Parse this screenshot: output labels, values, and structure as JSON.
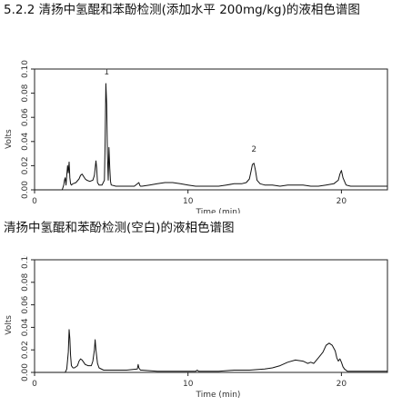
{
  "section_heading": "5.2.2 清扬中氢醌和苯酚检测(添加水平 200mg/kg)的液相色谱图",
  "blank_heading": "清扬中氢醌和苯酚检测(空白)的液相色谱图",
  "chart_data": [
    {
      "type": "line",
      "xlabel": "Time (min)",
      "ylabel": "Volts",
      "xlim": [
        0,
        23
      ],
      "ylim": [
        0,
        0.1
      ],
      "x_ticks": [
        0,
        10,
        20
      ],
      "y_ticks": [
        0.0,
        0.02,
        0.04,
        0.06,
        0.08,
        0.1
      ],
      "y_tick_labels": [
        "0.00",
        "0.02",
        "0.04",
        "0.06",
        "0.08",
        "0.10"
      ],
      "x_tick_labels": [
        "0",
        "10",
        "20"
      ],
      "annotations": [
        {
          "text": "1",
          "x": 4.7,
          "y": 0.094
        },
        {
          "text": "2",
          "x": 14.3,
          "y": 0.03
        }
      ],
      "series": [
        {
          "x": [
            0,
            1.8,
            1.9,
            1.95,
            2.0,
            2.05,
            2.1,
            2.15,
            2.2,
            2.25,
            2.3,
            2.35,
            2.4,
            2.5,
            2.7,
            2.9,
            3.0,
            3.1,
            3.2,
            3.3,
            3.4,
            3.6,
            3.8,
            3.9,
            4.0,
            4.05,
            4.1,
            4.2,
            4.4,
            4.55,
            4.6,
            4.65,
            4.7,
            4.75,
            4.8,
            4.85,
            4.9,
            4.95,
            5.0,
            5.3,
            5.8,
            6.5,
            6.8,
            6.85,
            6.9,
            7.0,
            7.5,
            8.0,
            8.5,
            9.0,
            9.5,
            10.0,
            10.5,
            11.0,
            11.5,
            12.0,
            12.5,
            13.0,
            13.5,
            13.8,
            14.0,
            14.1,
            14.2,
            14.3,
            14.4,
            14.5,
            14.7,
            15.0,
            15.5,
            16.0,
            16.5,
            17.0,
            17.5,
            18.0,
            18.5,
            19.0,
            19.5,
            19.8,
            19.9,
            20.0,
            20.1,
            20.3,
            20.6,
            21.0,
            22.0,
            23.0
          ],
          "y": [
            0.0,
            0.0,
            0.004,
            0.008,
            0.01,
            0.004,
            0.012,
            0.02,
            0.014,
            0.023,
            0.01,
            0.005,
            0.004,
            0.005,
            0.006,
            0.009,
            0.012,
            0.013,
            0.011,
            0.009,
            0.008,
            0.007,
            0.008,
            0.012,
            0.024,
            0.018,
            0.006,
            0.004,
            0.004,
            0.008,
            0.04,
            0.088,
            0.071,
            0.03,
            0.008,
            0.035,
            0.018,
            0.007,
            0.004,
            0.003,
            0.003,
            0.003,
            0.006,
            0.004,
            0.003,
            0.003,
            0.004,
            0.005,
            0.006,
            0.006,
            0.005,
            0.004,
            0.003,
            0.003,
            0.003,
            0.003,
            0.004,
            0.005,
            0.005,
            0.006,
            0.009,
            0.015,
            0.021,
            0.022,
            0.016,
            0.008,
            0.005,
            0.004,
            0.004,
            0.003,
            0.004,
            0.004,
            0.004,
            0.003,
            0.003,
            0.004,
            0.005,
            0.008,
            0.013,
            0.016,
            0.01,
            0.004,
            0.003,
            0.003,
            0.003,
            0.003
          ]
        }
      ]
    },
    {
      "type": "line",
      "xlabel": "Time (min)",
      "ylabel": "Volts",
      "xlim": [
        0,
        23
      ],
      "ylim": [
        0,
        0.1
      ],
      "x_ticks": [
        0,
        10,
        20
      ],
      "y_ticks": [
        0.0,
        0.02,
        0.04,
        0.06,
        0.08,
        0.1
      ],
      "y_tick_labels": [
        "0.00",
        "0.02",
        "0.04",
        "0.06",
        "0.08",
        "0.10"
      ],
      "x_tick_labels": [
        "0",
        "10",
        "20"
      ],
      "annotations": [],
      "series": [
        {
          "x": [
            0,
            2.0,
            2.1,
            2.2,
            2.25,
            2.3,
            2.35,
            2.4,
            2.5,
            2.6,
            2.8,
            2.9,
            3.0,
            3.1,
            3.2,
            3.3,
            3.5,
            3.7,
            3.8,
            3.9,
            3.95,
            4.0,
            4.1,
            4.2,
            4.5,
            5.0,
            6.0,
            6.7,
            6.75,
            6.8,
            6.9,
            7.0,
            8.0,
            9.0,
            10.0,
            10.5,
            10.6,
            10.7,
            11.0,
            12.0,
            13.0,
            14.0,
            15.0,
            15.5,
            16.0,
            16.5,
            17.0,
            17.5,
            17.8,
            18.0,
            18.2,
            18.5,
            18.8,
            19.0,
            19.2,
            19.4,
            19.6,
            19.7,
            19.8,
            19.9,
            20.0,
            20.1,
            20.2,
            20.4,
            20.8,
            21.5,
            22.0,
            23.0
          ],
          "y": [
            0.0,
            0.0,
            0.003,
            0.018,
            0.038,
            0.03,
            0.015,
            0.006,
            0.004,
            0.004,
            0.006,
            0.01,
            0.012,
            0.011,
            0.009,
            0.007,
            0.006,
            0.006,
            0.01,
            0.02,
            0.029,
            0.02,
            0.008,
            0.004,
            0.002,
            0.002,
            0.002,
            0.003,
            0.007,
            0.004,
            0.002,
            0.002,
            0.001,
            0.001,
            0.001,
            0.001,
            0.002,
            0.001,
            0.001,
            0.001,
            0.002,
            0.002,
            0.003,
            0.004,
            0.006,
            0.009,
            0.011,
            0.01,
            0.008,
            0.009,
            0.008,
            0.013,
            0.018,
            0.024,
            0.026,
            0.024,
            0.019,
            0.013,
            0.01,
            0.012,
            0.009,
            0.005,
            0.003,
            0.001,
            0.001,
            0.001,
            0.001,
            0.001
          ]
        }
      ]
    }
  ]
}
